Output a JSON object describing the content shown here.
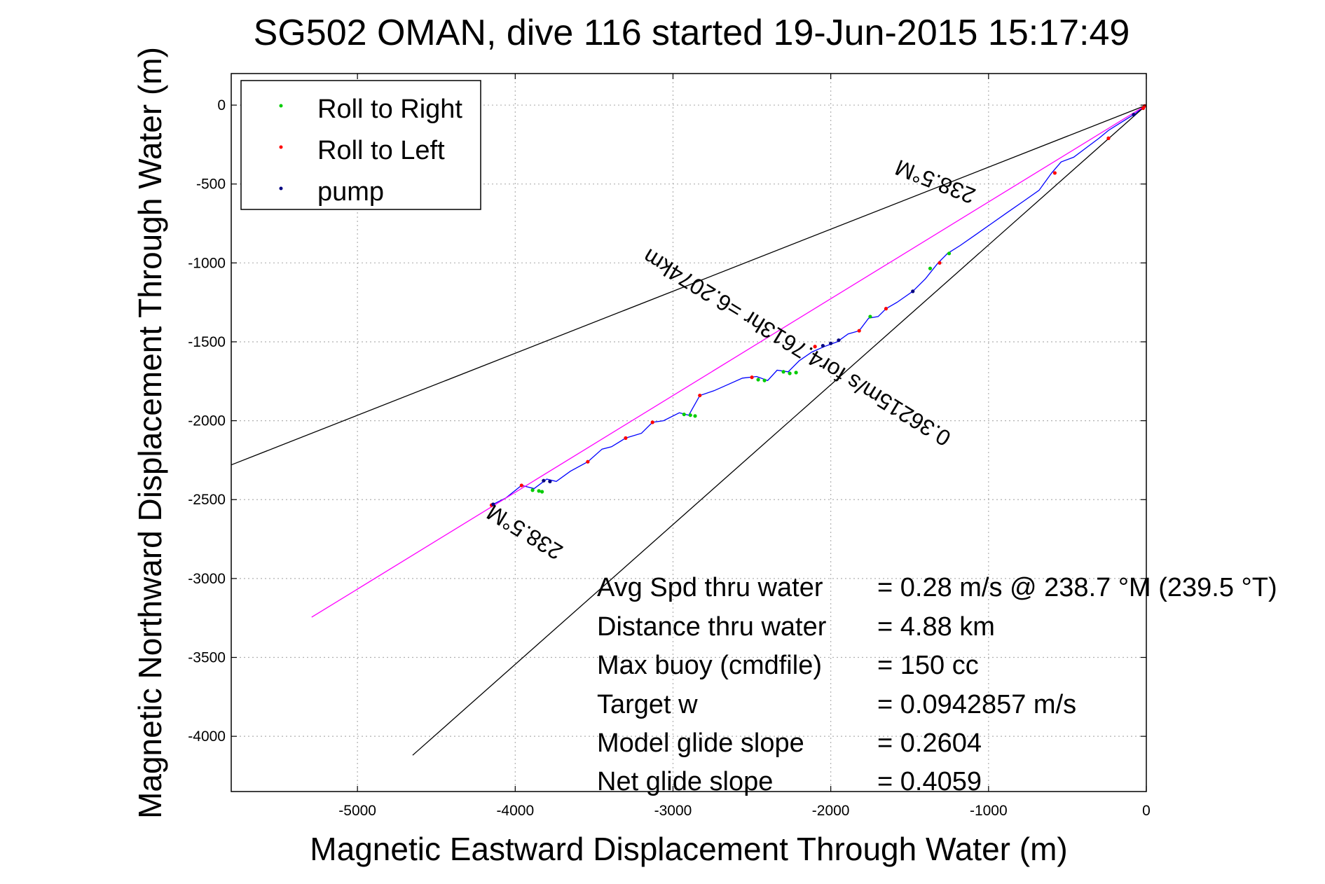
{
  "chart_data": {
    "type": "line",
    "title": "SG502 OMAN, dive 116 started 19-Jun-2015 15:17:49",
    "xlabel": "Magnetic Eastward Displacement Through Water (m)",
    "ylabel": "Magnetic Northward Displacement Through Water (m)",
    "xlim": [
      -5800,
      0
    ],
    "ylim": [
      -4350,
      200
    ],
    "grid": true,
    "legend_position": "top-left",
    "x_ticks": [
      -5000,
      -4000,
      -3000,
      -2000,
      -1000,
      0
    ],
    "y_ticks": [
      0,
      -500,
      -1000,
      -1500,
      -2000,
      -2500,
      -3000,
      -3500,
      -4000
    ],
    "series": [
      {
        "name": "Roll to Right",
        "color": "#00cc00",
        "style": "markers",
        "x": [
          -3890,
          -3850,
          -3830,
          -2930,
          -2890,
          -2860,
          -2460,
          -2420,
          -2300,
          -2260,
          -2220,
          -1750,
          -1370,
          -1250
        ],
        "y": [
          -2440,
          -2445,
          -2450,
          -1960,
          -1965,
          -1970,
          -1740,
          -1745,
          -1690,
          -1700,
          -1695,
          -1340,
          -1035,
          -940
        ]
      },
      {
        "name": "Roll to Left",
        "color": "#ff0000",
        "style": "markers",
        "x": [
          -4150,
          -3960,
          -3540,
          -3300,
          -3130,
          -2830,
          -2500,
          -2100,
          -1820,
          -1650,
          -1310,
          -580,
          -240,
          -20,
          -10
        ],
        "y": [
          -2535,
          -2410,
          -2260,
          -2110,
          -2010,
          -1840,
          -1725,
          -1530,
          -1430,
          -1290,
          -1000,
          -430,
          -210,
          -20,
          -5
        ]
      },
      {
        "name": "pump",
        "color": "#000080",
        "style": "markers",
        "x": [
          -4140,
          -3820,
          -3780,
          -2050,
          -2000,
          -1950,
          -1480,
          -80
        ],
        "y": [
          -2530,
          -2380,
          -2385,
          -1525,
          -1510,
          -1490,
          -1180,
          -60
        ]
      },
      {
        "name": "",
        "color": "#0000ff",
        "style": "line",
        "x": [
          -4150,
          -4060,
          -3960,
          -3880,
          -3800,
          -3740,
          -3650,
          -3540,
          -3450,
          -3390,
          -3300,
          -3200,
          -3130,
          -3060,
          -2960,
          -2900,
          -2830,
          -2740,
          -2650,
          -2560,
          -2470,
          -2400,
          -2340,
          -2270,
          -2200,
          -2120,
          -2040,
          -1960,
          -1890,
          -1820,
          -1760,
          -1700,
          -1650,
          -1580,
          -1480,
          -1400,
          -1320,
          -1260,
          -1180,
          -1080,
          -980,
          -880,
          -780,
          -680,
          -600,
          -540,
          -460,
          -380,
          -300,
          -240,
          -160,
          -80,
          0
        ],
        "y": [
          -2535,
          -2490,
          -2410,
          -2430,
          -2370,
          -2385,
          -2320,
          -2260,
          -2180,
          -2165,
          -2110,
          -2080,
          -2010,
          -2000,
          -1950,
          -1965,
          -1840,
          -1810,
          -1770,
          -1730,
          -1720,
          -1745,
          -1680,
          -1690,
          -1620,
          -1565,
          -1530,
          -1500,
          -1450,
          -1430,
          -1350,
          -1340,
          -1290,
          -1250,
          -1180,
          -1100,
          -1000,
          -940,
          -890,
          -820,
          -750,
          -680,
          -610,
          -540,
          -430,
          -360,
          -330,
          -270,
          -210,
          -160,
          -110,
          -60,
          0
        ]
      },
      {
        "name": "",
        "color": "#ff00ff",
        "style": "line",
        "x": [
          0,
          -5290
        ],
        "y": [
          0,
          -3245
        ]
      },
      {
        "name": "",
        "color": "#000000",
        "style": "line",
        "x": [
          0,
          -5800
        ],
        "y": [
          0,
          -2280
        ]
      },
      {
        "name": "",
        "color": "#000000",
        "style": "line",
        "x": [
          0,
          -4650
        ],
        "y": [
          0,
          -4120
        ]
      }
    ],
    "annotations": [
      {
        "text": "238.5°M",
        "x": -1320,
        "y": -440,
        "rotation_deg": 201.5
      },
      {
        "text": "0.36215m/s for4.7613hr =6.2074km",
        "x": -2190,
        "y": -1495,
        "rotation_deg": 211.5
      },
      {
        "text": "238.5°M",
        "x": -3915,
        "y": -2665,
        "rotation_deg": 211.5
      }
    ],
    "info_rows": [
      {
        "label": "Avg Spd thru water",
        "value": "=  0.28 m/s @ 238.7 °M (239.5 °T)"
      },
      {
        "label": "Distance thru water",
        "value": "=  4.88 km"
      },
      {
        "label": "Max buoy (cmdfile)",
        "value": "= 150 cc"
      },
      {
        "label": "Target w",
        "value": "= 0.0942857 m/s"
      },
      {
        "label": "Model glide slope",
        "value": "= 0.2604"
      },
      {
        "label": "Net glide slope",
        "value": "= 0.4059"
      }
    ]
  }
}
